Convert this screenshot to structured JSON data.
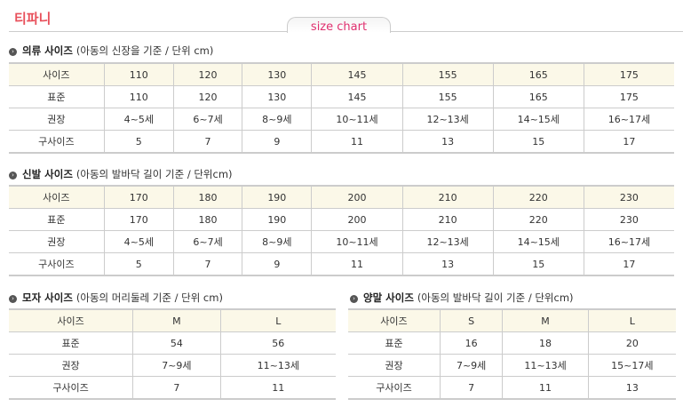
{
  "brand": "티파니",
  "tab": "size chart",
  "clothing": {
    "title": "의류 사이즈",
    "note": "(아동의 신장을 기준 / 단위 cm)",
    "rows": [
      [
        "사이즈",
        "110",
        "120",
        "130",
        "145",
        "155",
        "165",
        "175"
      ],
      [
        "표준",
        "110",
        "120",
        "130",
        "145",
        "155",
        "165",
        "175"
      ],
      [
        "권장",
        "4~5세",
        "6~7세",
        "8~9세",
        "10~11세",
        "12~13세",
        "14~15세",
        "16~17세"
      ],
      [
        "구사이즈",
        "5",
        "7",
        "9",
        "11",
        "13",
        "15",
        "17"
      ]
    ]
  },
  "shoes": {
    "title": "신발 사이즈",
    "note": "(아동의 발바닥 길이 기준 / 단위cm)",
    "rows": [
      [
        "사이즈",
        "170",
        "180",
        "190",
        "200",
        "210",
        "220",
        "230"
      ],
      [
        "표준",
        "170",
        "180",
        "190",
        "200",
        "210",
        "220",
        "230"
      ],
      [
        "권장",
        "4~5세",
        "6~7세",
        "8~9세",
        "10~11세",
        "12~13세",
        "14~15세",
        "16~17세"
      ],
      [
        "구사이즈",
        "5",
        "7",
        "9",
        "11",
        "13",
        "15",
        "17"
      ]
    ]
  },
  "hats": {
    "title": "모자 사이즈",
    "note": "(아동의 머리둘레 기준 / 단위 cm)",
    "rows": [
      [
        "사이즈",
        "M",
        "L"
      ],
      [
        "표준",
        "54",
        "56"
      ],
      [
        "권장",
        "7~9세",
        "11~13세"
      ],
      [
        "구사이즈",
        "7",
        "11"
      ]
    ]
  },
  "socks": {
    "title": "양말 사이즈",
    "note": "(아동의 발바닥 길이 기준 / 단위cm)",
    "rows": [
      [
        "사이즈",
        "S",
        "M",
        "L"
      ],
      [
        "표준",
        "16",
        "18",
        "20"
      ],
      [
        "권장",
        "7~9세",
        "11~13세",
        "15~17세"
      ],
      [
        "구사이즈",
        "7",
        "11",
        "13"
      ]
    ]
  }
}
